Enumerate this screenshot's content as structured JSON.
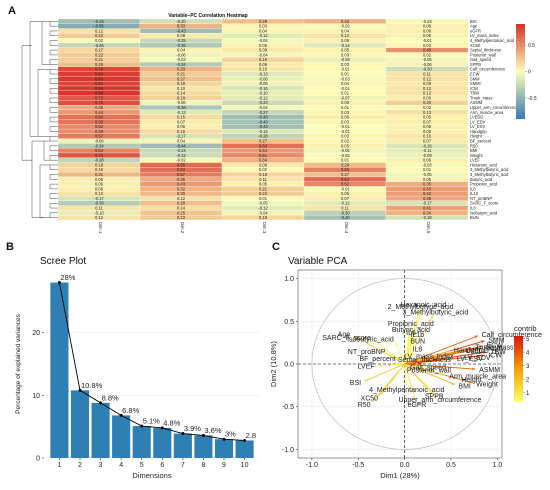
{
  "panel_letters": [
    "A",
    "B",
    "C"
  ],
  "colors": {
    "heat_neg": "#3a78b0",
    "heat_mid": "#fdfdb8",
    "heat_pos": "#d7302a",
    "bar": "#2e7fb3",
    "contrib_low": "#ffff66",
    "contrib_mid": "#f5a000",
    "contrib_high": "#e01010",
    "circle": "#bbbbbb",
    "panel_bg": "#ffffff",
    "grid": "#ebebeb"
  },
  "chart_data": [
    {
      "type": "heatmap",
      "title": "Variable–PC Correlation Heatmap",
      "columns": [
        "Dim.1",
        "Dim.2",
        "Dim.3",
        "Dim.4",
        "Dim.5"
      ],
      "rows": [
        {
          "name": "BSI",
          "values": [
            -0.43,
            -0.2,
            0.28,
            0.33,
            -0.03
          ]
        },
        {
          "name": "Age",
          "values": [
            -0.55,
            0.33,
            0.03,
            -0.02,
            0.06
          ]
        },
        {
          "name": "eGFR",
          "values": [
            0.12,
            -0.43,
            0.04,
            0.04,
            0.06
          ]
        },
        {
          "name": "LV_mass_index",
          "values": [
            0.22,
            0.08,
            -0.12,
            0.12,
            0.05
          ]
        },
        {
          "name": "4_Methylpentanoic_acid",
          "values": [
            0.02,
            -0.25,
            -0.04,
            0.06,
            -0.01
          ]
        },
        {
          "name": "XC50",
          "values": [
            -0.26,
            -0.36,
            0.05,
            -0.14,
            0.03
          ]
        },
        {
          "name": "Septal_thickness",
          "values": [
            0.17,
            0.04,
            0.09,
            0.05,
            0.48
          ]
        },
        {
          "name": "Posterior_wall",
          "values": [
            0.22,
            -0.06,
            -0.04,
            0.03,
            0.02
          ]
        },
        {
          "name": "Gait_speed",
          "values": [
            0.21,
            -0.03,
            0.18,
            -0.09,
            -0.05
          ]
        },
        {
          "name": "SPPB",
          "values": [
            0.29,
            -0.34,
            0.09,
            0.03,
            -0.06
          ]
        },
        {
          "name": "Calf_circumference",
          "values": [
            0.79,
            0.33,
            0.1,
            -0.01,
            -0.2
          ]
        },
        {
          "name": "ECW",
          "values": [
            0.84,
            0.21,
            -0.13,
            0.01,
            0.11
          ]
        },
        {
          "name": "SMM",
          "values": [
            0.86,
            0.27,
            -0.08,
            -0.03,
            0.12
          ]
        },
        {
          "name": "SMMI",
          "values": [
            0.81,
            0.18,
            -0.06,
            0.04,
            0.09
          ]
        },
        {
          "name": "ICW",
          "values": [
            0.86,
            0.1,
            -0.16,
            -0.01,
            0.12
          ]
        },
        {
          "name": "TBW",
          "values": [
            0.88,
            0.14,
            -0.1,
            0.01,
            0.12
          ]
        },
        {
          "name": "Trunk_mass",
          "values": [
            0.72,
            0.19,
            -0.12,
            -0.07,
            0.06
          ]
        },
        {
          "name": "ASMM",
          "values": [
            0.76,
            -0.06,
            -0.23,
            0.05,
            0.2
          ]
        },
        {
          "name": "Upper_arm_circumference",
          "values": [
            0.35,
            -0.38,
            -0.04,
            0.01,
            0.02
          ]
        },
        {
          "name": "Arm_muscle_area",
          "values": [
            0.44,
            -0.13,
            -0.27,
            0.03,
            0.13
          ]
        },
        {
          "name": "LVEDD",
          "values": [
            0.62,
            0.15,
            -0.43,
            0.06,
            0.05
          ]
        },
        {
          "name": "LV_EDV",
          "values": [
            0.6,
            0.07,
            -0.4,
            0.03,
            0.07
          ]
        },
        {
          "name": "LV_ESV",
          "values": [
            0.52,
            0.06,
            -0.43,
            -0.01,
            0.05
          ]
        },
        {
          "name": "Handgrip",
          "values": [
            0.49,
            0.15,
            -0.14,
            -0.01,
            0.05
          ]
        },
        {
          "name": "Height",
          "values": [
            0.57,
            -0.17,
            -0.28,
            0.03,
            0.1
          ]
        },
        {
          "name": "BF_percent",
          "values": [
            -0.06,
            0.04,
            0.27,
            0.02,
            0.07
          ]
        },
        {
          "name": "R50",
          "values": [
            -0.34,
            -0.44,
            0.63,
            0.05,
            -0.16
          ]
        },
        {
          "name": "BMI",
          "values": [
            0.54,
            -0.24,
            0.44,
            -0.05,
            -0.11
          ]
        },
        {
          "name": "Weight",
          "values": [
            0.73,
            -0.22,
            0.51,
            -0.02,
            -0.09
          ]
        },
        {
          "name": "LVEF",
          "values": [
            -0.28,
            -0.02,
            0.34,
            0.01,
            0.06
          ]
        },
        {
          "name": "Hexanoic_acid",
          "values": [
            0.19,
            0.65,
            0.08,
            0.29,
            -0.03
          ]
        },
        {
          "name": "2_Methylbutyric_acid",
          "values": [
            0.16,
            0.63,
            0.02,
            0.55,
            0.01
          ]
        },
        {
          "name": "3_Methylbutyric_acid",
          "values": [
            0.31,
            0.57,
            0.18,
            0.27,
            -0.05
          ]
        },
        {
          "name": "Butyric_acid",
          "values": [
            0.06,
            0.36,
            0.11,
            0.64,
            0.05
          ]
        },
        {
          "name": "Propionic_acid",
          "values": [
            0.06,
            0.43,
            0.05,
            0.52,
            0.35
          ]
        },
        {
          "name": "IL6",
          "values": [
            0.06,
            0.32,
            0.21,
            -0.01,
            0.43
          ]
        },
        {
          "name": "IL1b",
          "values": [
            0.12,
            0.3,
            0.22,
            0.05,
            0.42
          ]
        },
        {
          "name": "NT_proBNP",
          "values": [
            -0.17,
            0.12,
            0.01,
            0.07,
            0.38
          ]
        },
        {
          "name": "SARC_F_score",
          "values": [
            -0.33,
            0.28,
            -0.05,
            -0.12,
            -0.17
          ]
        },
        {
          "name": "IL8",
          "values": [
            0.11,
            0.14,
            -0.12,
            0.11,
            0.41
          ]
        },
        {
          "name": "Isobutyric_acid",
          "values": [
            -0.1,
            0.25,
            -0.04,
            -0.3,
            0.34
          ]
        },
        {
          "name": "BUN",
          "values": [
            0.12,
            0.23,
            0.18,
            -0.4,
            -0.18
          ]
        }
      ],
      "legend": {
        "ticks": [
          "0.5",
          "0",
          "-0.5"
        ],
        "range": [
          -0.9,
          0.9
        ]
      }
    },
    {
      "type": "bar",
      "title": "Scree Plot",
      "xlabel": "Dimensions",
      "ylabel": "Percentage of explained variances",
      "categories": [
        "1",
        "2",
        "3",
        "4",
        "5",
        "6",
        "7",
        "8",
        "9",
        "10"
      ],
      "values": [
        28,
        10.8,
        8.8,
        6.8,
        5.1,
        4.8,
        3.9,
        3.6,
        3,
        2.8
      ],
      "labels": [
        "28%",
        "10.8%",
        "8.8%",
        "6.8%",
        "5.1%",
        "4.8%",
        "3.9%",
        "3.6%",
        "3%",
        "2.8"
      ],
      "ylim": [
        0,
        30
      ],
      "yticks": [
        0,
        10,
        20
      ],
      "grid": true
    },
    {
      "type": "scatter",
      "title": "Variable PCA",
      "xlabel": "Dim1 (28%)",
      "ylabel": "Dim2 (10.8%)",
      "xlim": [
        -1.15,
        1.05
      ],
      "ylim": [
        -1.1,
        1.1
      ],
      "xticks": [
        -1.0,
        -0.5,
        0.0,
        0.5,
        1.0
      ],
      "yticks": [
        -1.0,
        -0.5,
        0.0,
        0.5,
        1.0
      ],
      "xtick_labels": [
        "-1.0",
        "-0.5",
        "0.0",
        "0.5",
        "1.0"
      ],
      "ytick_labels": [
        "-1.0",
        "-0.5",
        "0.0",
        "0.5",
        "1.0"
      ],
      "legend": {
        "title": "contrib",
        "ticks": [
          "5",
          "4",
          "3",
          "2",
          "1"
        ],
        "range": [
          0.3,
          5.2
        ]
      },
      "arrows": [
        {
          "name": "2_Methylbutyric_acid",
          "x": 0.16,
          "y": 0.63,
          "contrib": 0.8
        },
        {
          "name": "3_Methylbutyric_acid",
          "x": 0.31,
          "y": 0.57,
          "contrib": 1.2
        },
        {
          "name": "Hexanoic_acid",
          "x": 0.19,
          "y": 0.65,
          "contrib": 1.0
        },
        {
          "name": "Propionic_acid",
          "x": 0.06,
          "y": 0.43,
          "contrib": 0.6
        },
        {
          "name": "Isobutyric_acid",
          "x": -0.1,
          "y": 0.25,
          "contrib": 0.4
        },
        {
          "name": "IL6",
          "x": 0.06,
          "y": 0.32,
          "contrib": 0.4
        },
        {
          "name": "IL8",
          "x": 0.11,
          "y": 0.14,
          "contrib": 0.3
        },
        {
          "name": "SARC_F_score",
          "x": -0.33,
          "y": 0.28,
          "contrib": 0.7
        },
        {
          "name": "Butyric_acid",
          "x": 0.06,
          "y": 0.36,
          "contrib": 0.5
        },
        {
          "name": "IL1b",
          "x": 0.12,
          "y": 0.3,
          "contrib": 0.4
        },
        {
          "name": "NT_proBNP",
          "x": -0.17,
          "y": 0.12,
          "contrib": 0.4
        },
        {
          "name": "Age",
          "x": -0.55,
          "y": 0.33,
          "contrib": 1.4
        },
        {
          "name": "LVEF",
          "x": -0.28,
          "y": -0.02,
          "contrib": 0.8
        },
        {
          "name": "BSI",
          "x": -0.43,
          "y": -0.2,
          "contrib": 1.6
        },
        {
          "name": "BUN",
          "x": 0.12,
          "y": 0.23,
          "contrib": 0.3
        },
        {
          "name": "R50",
          "x": -0.34,
          "y": -0.44,
          "contrib": 1.9
        },
        {
          "name": "XC50",
          "x": -0.26,
          "y": -0.36,
          "contrib": 1.4
        },
        {
          "name": "BF_percent",
          "x": -0.06,
          "y": 0.04,
          "contrib": 0.3
        },
        {
          "name": "Septal_thickness",
          "x": 0.17,
          "y": 0.04,
          "contrib": 0.5
        },
        {
          "name": "4_Methylpentanoic_acid",
          "x": 0.02,
          "y": -0.25,
          "contrib": 0.4
        },
        {
          "name": "Posterior_wall",
          "x": 0.22,
          "y": -0.06,
          "contrib": 0.5
        },
        {
          "name": "Gait_speed",
          "x": 0.21,
          "y": -0.03,
          "contrib": 0.5
        },
        {
          "name": "SPPB",
          "x": 0.29,
          "y": -0.34,
          "contrib": 1.3
        },
        {
          "name": "eGFR",
          "x": 0.12,
          "y": -0.43,
          "contrib": 1.2
        },
        {
          "name": "LV_mass_index",
          "x": 0.22,
          "y": 0.08,
          "contrib": 0.5
        },
        {
          "name": "Calf_circumference",
          "x": 0.79,
          "y": 0.33,
          "contrib": 3.8
        },
        {
          "name": "SMM",
          "x": 0.86,
          "y": 0.27,
          "contrib": 4.6
        },
        {
          "name": "SMMI",
          "x": 0.81,
          "y": 0.18,
          "contrib": 4.0
        },
        {
          "name": "ECW",
          "x": 0.84,
          "y": 0.21,
          "contrib": 4.4
        },
        {
          "name": "Trunk_mass",
          "x": 0.72,
          "y": 0.19,
          "contrib": 3.3
        },
        {
          "name": "TBW",
          "x": 0.88,
          "y": 0.14,
          "contrib": 4.9
        },
        {
          "name": "LVEDD",
          "x": 0.62,
          "y": 0.15,
          "contrib": 2.4
        },
        {
          "name": "LV_EDV",
          "x": 0.6,
          "y": 0.07,
          "contrib": 2.3
        },
        {
          "name": "LV_ESV",
          "x": 0.52,
          "y": 0.06,
          "contrib": 1.8
        },
        {
          "name": "ICW",
          "x": 0.86,
          "y": 0.1,
          "contrib": 4.5
        },
        {
          "name": "Handgrip",
          "x": 0.49,
          "y": 0.15,
          "contrib": 1.7
        },
        {
          "name": "Height",
          "x": 0.57,
          "y": -0.17,
          "contrib": 2.2
        },
        {
          "name": "Weight",
          "x": 0.73,
          "y": -0.22,
          "contrib": 3.4
        },
        {
          "name": "BMI",
          "x": 0.54,
          "y": -0.24,
          "contrib": 2.3
        },
        {
          "name": "ASMM",
          "x": 0.76,
          "y": -0.06,
          "contrib": 3.6
        },
        {
          "name": "Arm_muscle_area",
          "x": 0.44,
          "y": -0.13,
          "contrib": 1.4
        },
        {
          "name": "Upper_arm_circumference",
          "x": 0.35,
          "y": -0.38,
          "contrib": 1.6
        }
      ]
    }
  ]
}
